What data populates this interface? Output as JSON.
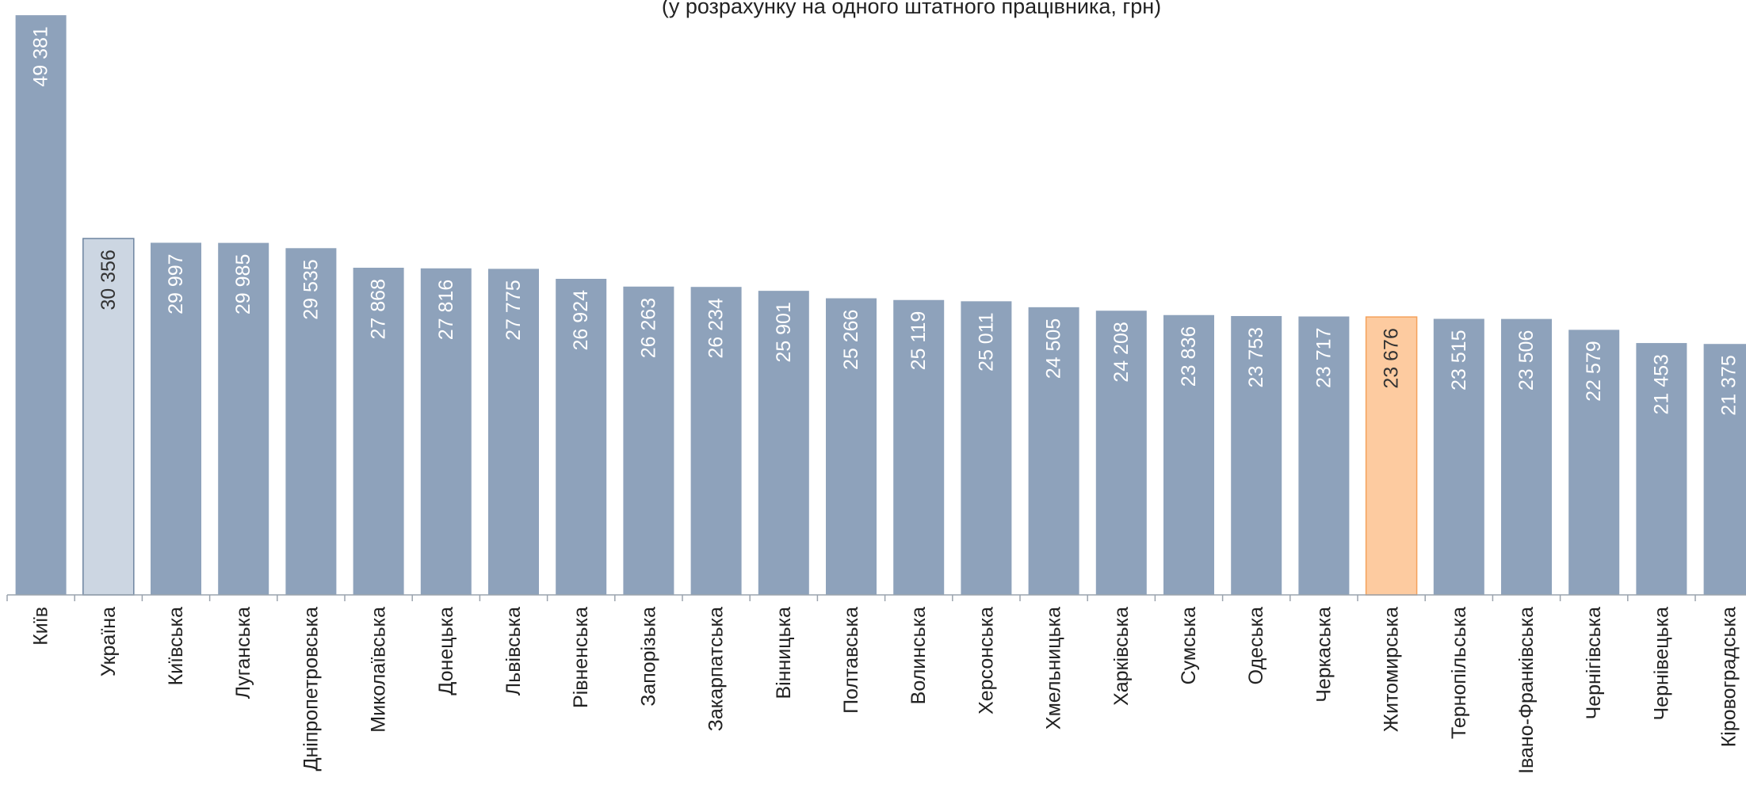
{
  "chart_data": {
    "type": "bar",
    "subtitle": "(у розрахунку на одного штатного працівника, грн)",
    "categories": [
      "Київ",
      "Україна",
      "Київська",
      "Луганська",
      "Дніпропетровська",
      "Миколаївська",
      "Донецька",
      "Львівська",
      "Рівненська",
      "Запорізька",
      "Закарпатська",
      "Вінницька",
      "Полтавська",
      "Волинська",
      "Херсонська",
      "Хмельницька",
      "Харківська",
      "Сумська",
      "Одеська",
      "Черкаська",
      "Житомирська",
      "Тернопільська",
      "Івано-Франківська",
      "Чернігівська",
      "Чернівецька",
      "Кіровоградська"
    ],
    "values": [
      49381,
      30356,
      29997,
      29985,
      29535,
      27868,
      27816,
      27775,
      26924,
      26263,
      26234,
      25901,
      25266,
      25119,
      25011,
      24505,
      24208,
      23836,
      23753,
      23717,
      23676,
      23515,
      23506,
      22579,
      21453,
      21375
    ],
    "value_labels": [
      "49 381",
      "30 356",
      "29 997",
      "29 985",
      "29 535",
      "27 868",
      "27 816",
      "27 775",
      "26 924",
      "26 263",
      "26 234",
      "25 901",
      "25 266",
      "25 119",
      "25 011",
      "24 505",
      "24 208",
      "23 836",
      "23 753",
      "23 717",
      "23 676",
      "23 515",
      "23 506",
      "22 579",
      "21 453",
      "21 375"
    ],
    "highlight": {
      "Україна": "national-average",
      "Житомирська": "selected-region"
    },
    "colors": {
      "bar": "#8ea2bb",
      "national": "#ccd6e2",
      "national_border": "#6d84a0",
      "highlight": "#fdcba0",
      "highlight_border": "#f4a25b",
      "label_light": "#ffffff",
      "label_dark": "#333333"
    },
    "ylim": [
      0,
      50000
    ],
    "grid": false,
    "legend": "none",
    "xlabel": "",
    "ylabel": ""
  }
}
